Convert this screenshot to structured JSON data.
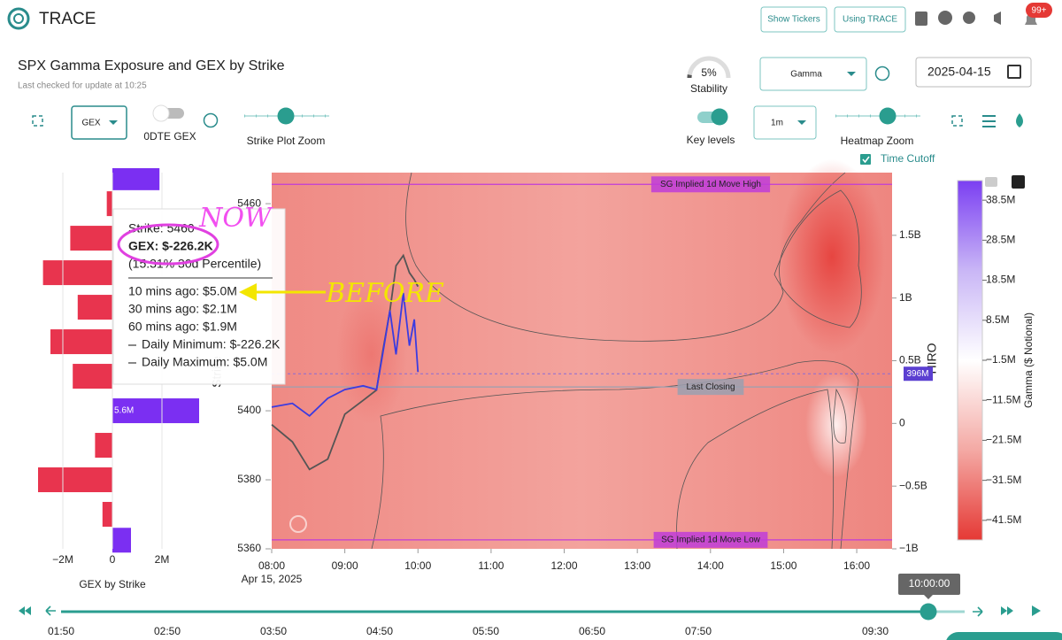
{
  "header": {
    "app_name": "TRACE",
    "buttons": [
      "Show Tickers",
      "Using TRACE"
    ],
    "badge": "99+"
  },
  "page": {
    "title": "SPX Gamma Exposure and GEX by Strike",
    "subtitle": "Last checked for update at 10:25"
  },
  "stability": {
    "value": 5,
    "value_label": "5%",
    "caption": "Stability"
  },
  "controls": {
    "measure": "Gamma",
    "date": "2025-04-15",
    "gex_mode": "GEX",
    "odte": "0DTE GEX",
    "strike_zoom": "Strike Plot Zoom",
    "key_levels": "Key levels",
    "interval": "1m",
    "heatmap_zoom": "Heatmap Zoom",
    "time_cutoff": "Time Cutoff"
  },
  "strike_axis": {
    "label": "Strike",
    "ylim": [
      5360,
      5469
    ],
    "yticks": [
      5360,
      5380,
      5400,
      5460
    ]
  },
  "gex_chart": {
    "type": "bar",
    "xlabel": "GEX by Strike",
    "categories": [
      5467.5,
      5460,
      5450,
      5440,
      5430,
      5420,
      5410,
      5400,
      5390,
      5380,
      5370,
      5362.5
    ],
    "values": [
      1.9,
      -0.2262,
      -1.7,
      -2.8,
      -1.4,
      -2.5,
      -1.6,
      5.6,
      -0.7,
      -3.0,
      -0.4,
      0.75
    ],
    "value_labels": [
      null,
      null,
      null,
      null,
      null,
      null,
      null,
      "5.6M",
      null,
      null,
      null,
      null
    ],
    "colors": {
      "positive": "#7b2ff2",
      "negative": "#e8344e"
    },
    "xlim": [
      -4.5,
      3.5
    ],
    "xticks": [
      {
        "value": -2,
        "label": "−2M"
      },
      0,
      {
        "value": 2,
        "label": "2M"
      }
    ]
  },
  "heatmap": {
    "date": "Apr 15, 2025",
    "xlim": [
      "08:00",
      "16:29"
    ],
    "xticks": [
      "08:00",
      "09:00",
      "10:00",
      "11:00",
      "12:00",
      "13:00",
      "14:00",
      "15:00",
      "16:00"
    ],
    "y2label": "HIRO",
    "y2lim": [
      -1,
      2
    ],
    "y2ticks": [
      {
        "value": 1.5,
        "label": "1.5B"
      },
      {
        "value": 1,
        "label": "1B"
      },
      {
        "value": 0.5,
        "label": "0.5B"
      },
      0,
      {
        "value": -0.5,
        "label": "−0.5B"
      },
      {
        "value": -1,
        "label": "−1B"
      }
    ],
    "hiro_now": {
      "value": 0.396,
      "label": "396M"
    },
    "levels": [
      {
        "name": "SG Implied 1d Move High",
        "strike": 5465.6,
        "color": "#c03cd8"
      },
      {
        "name": "Last Closing",
        "strike": 5406.9,
        "color": "#9aa0b0"
      },
      {
        "name": "SG Implied 1d Move Low",
        "strike": 5362.6,
        "color": "#c03cd8"
      }
    ],
    "series": [
      {
        "name": "Price",
        "color": "#555555",
        "axis": "y",
        "x": [
          "08:00",
          "08:17",
          "08:31",
          "08:46",
          "09:00",
          "09:15",
          "09:26",
          "09:31",
          "09:37",
          "09:42",
          "09:48",
          "09:53",
          "09:57",
          "10:00"
        ],
        "values": [
          5396,
          5391,
          5383,
          5386,
          5399,
          5403,
          5406,
          5417,
          5429,
          5442,
          5445,
          5440,
          5438,
          5436
        ]
      },
      {
        "name": "HIRO",
        "color": "#3b3be0",
        "axis": "y2",
        "x": [
          "08:00",
          "08:17",
          "08:31",
          "08:46",
          "09:00",
          "09:15",
          "09:26",
          "09:31",
          "09:37",
          "09:42",
          "09:48",
          "09:53",
          "09:57",
          "10:00"
        ],
        "values": [
          0.13,
          0.16,
          0.06,
          0.2,
          0.27,
          0.3,
          0.27,
          0.55,
          0.9,
          0.55,
          1.04,
          0.62,
          0.83,
          0.41
        ]
      }
    ]
  },
  "colorbar": {
    "label": "Gamma ($ Notional)",
    "ylim": [
      -46.4,
      43.4
    ],
    "colorscale": [
      "#e53935",
      "#f4a9a4",
      "#ffffff",
      "#c9b6f6",
      "#7b3ff2"
    ],
    "yticks": [
      {
        "value": 38.5,
        "label": "38.5M"
      },
      {
        "value": 28.5,
        "label": "28.5M"
      },
      {
        "value": 18.5,
        "label": "18.5M"
      },
      {
        "value": 8.5,
        "label": "8.5M"
      },
      {
        "value": -1.5,
        "label": "−1.5M"
      },
      {
        "value": -11.5,
        "label": "−11.5M"
      },
      {
        "value": -21.5,
        "label": "−21.5M"
      },
      {
        "value": -31.5,
        "label": "−31.5M"
      },
      {
        "value": -41.5,
        "label": "−41.5M"
      }
    ]
  },
  "tooltip": {
    "lines": [
      "Strike: 5460",
      "GEX: $-226.2K",
      "(15.31% 30d Percentile)"
    ],
    "history": [
      "10 mins ago: $5.0M",
      "30 mins ago: $2.1M",
      "60 mins ago: $1.9M",
      "Daily Minimum: $-226.2K",
      "Daily Maximum: $5.0M"
    ]
  },
  "annotations": {
    "now": "NOW",
    "before": "BEFORE"
  },
  "timeline": {
    "xlim": [
      "01:50",
      "10:20"
    ],
    "current": "10:00:00",
    "xticks": [
      "01:50",
      "02:50",
      "03:50",
      "04:50",
      "05:50",
      "06:50",
      "07:50",
      "09:30"
    ]
  }
}
